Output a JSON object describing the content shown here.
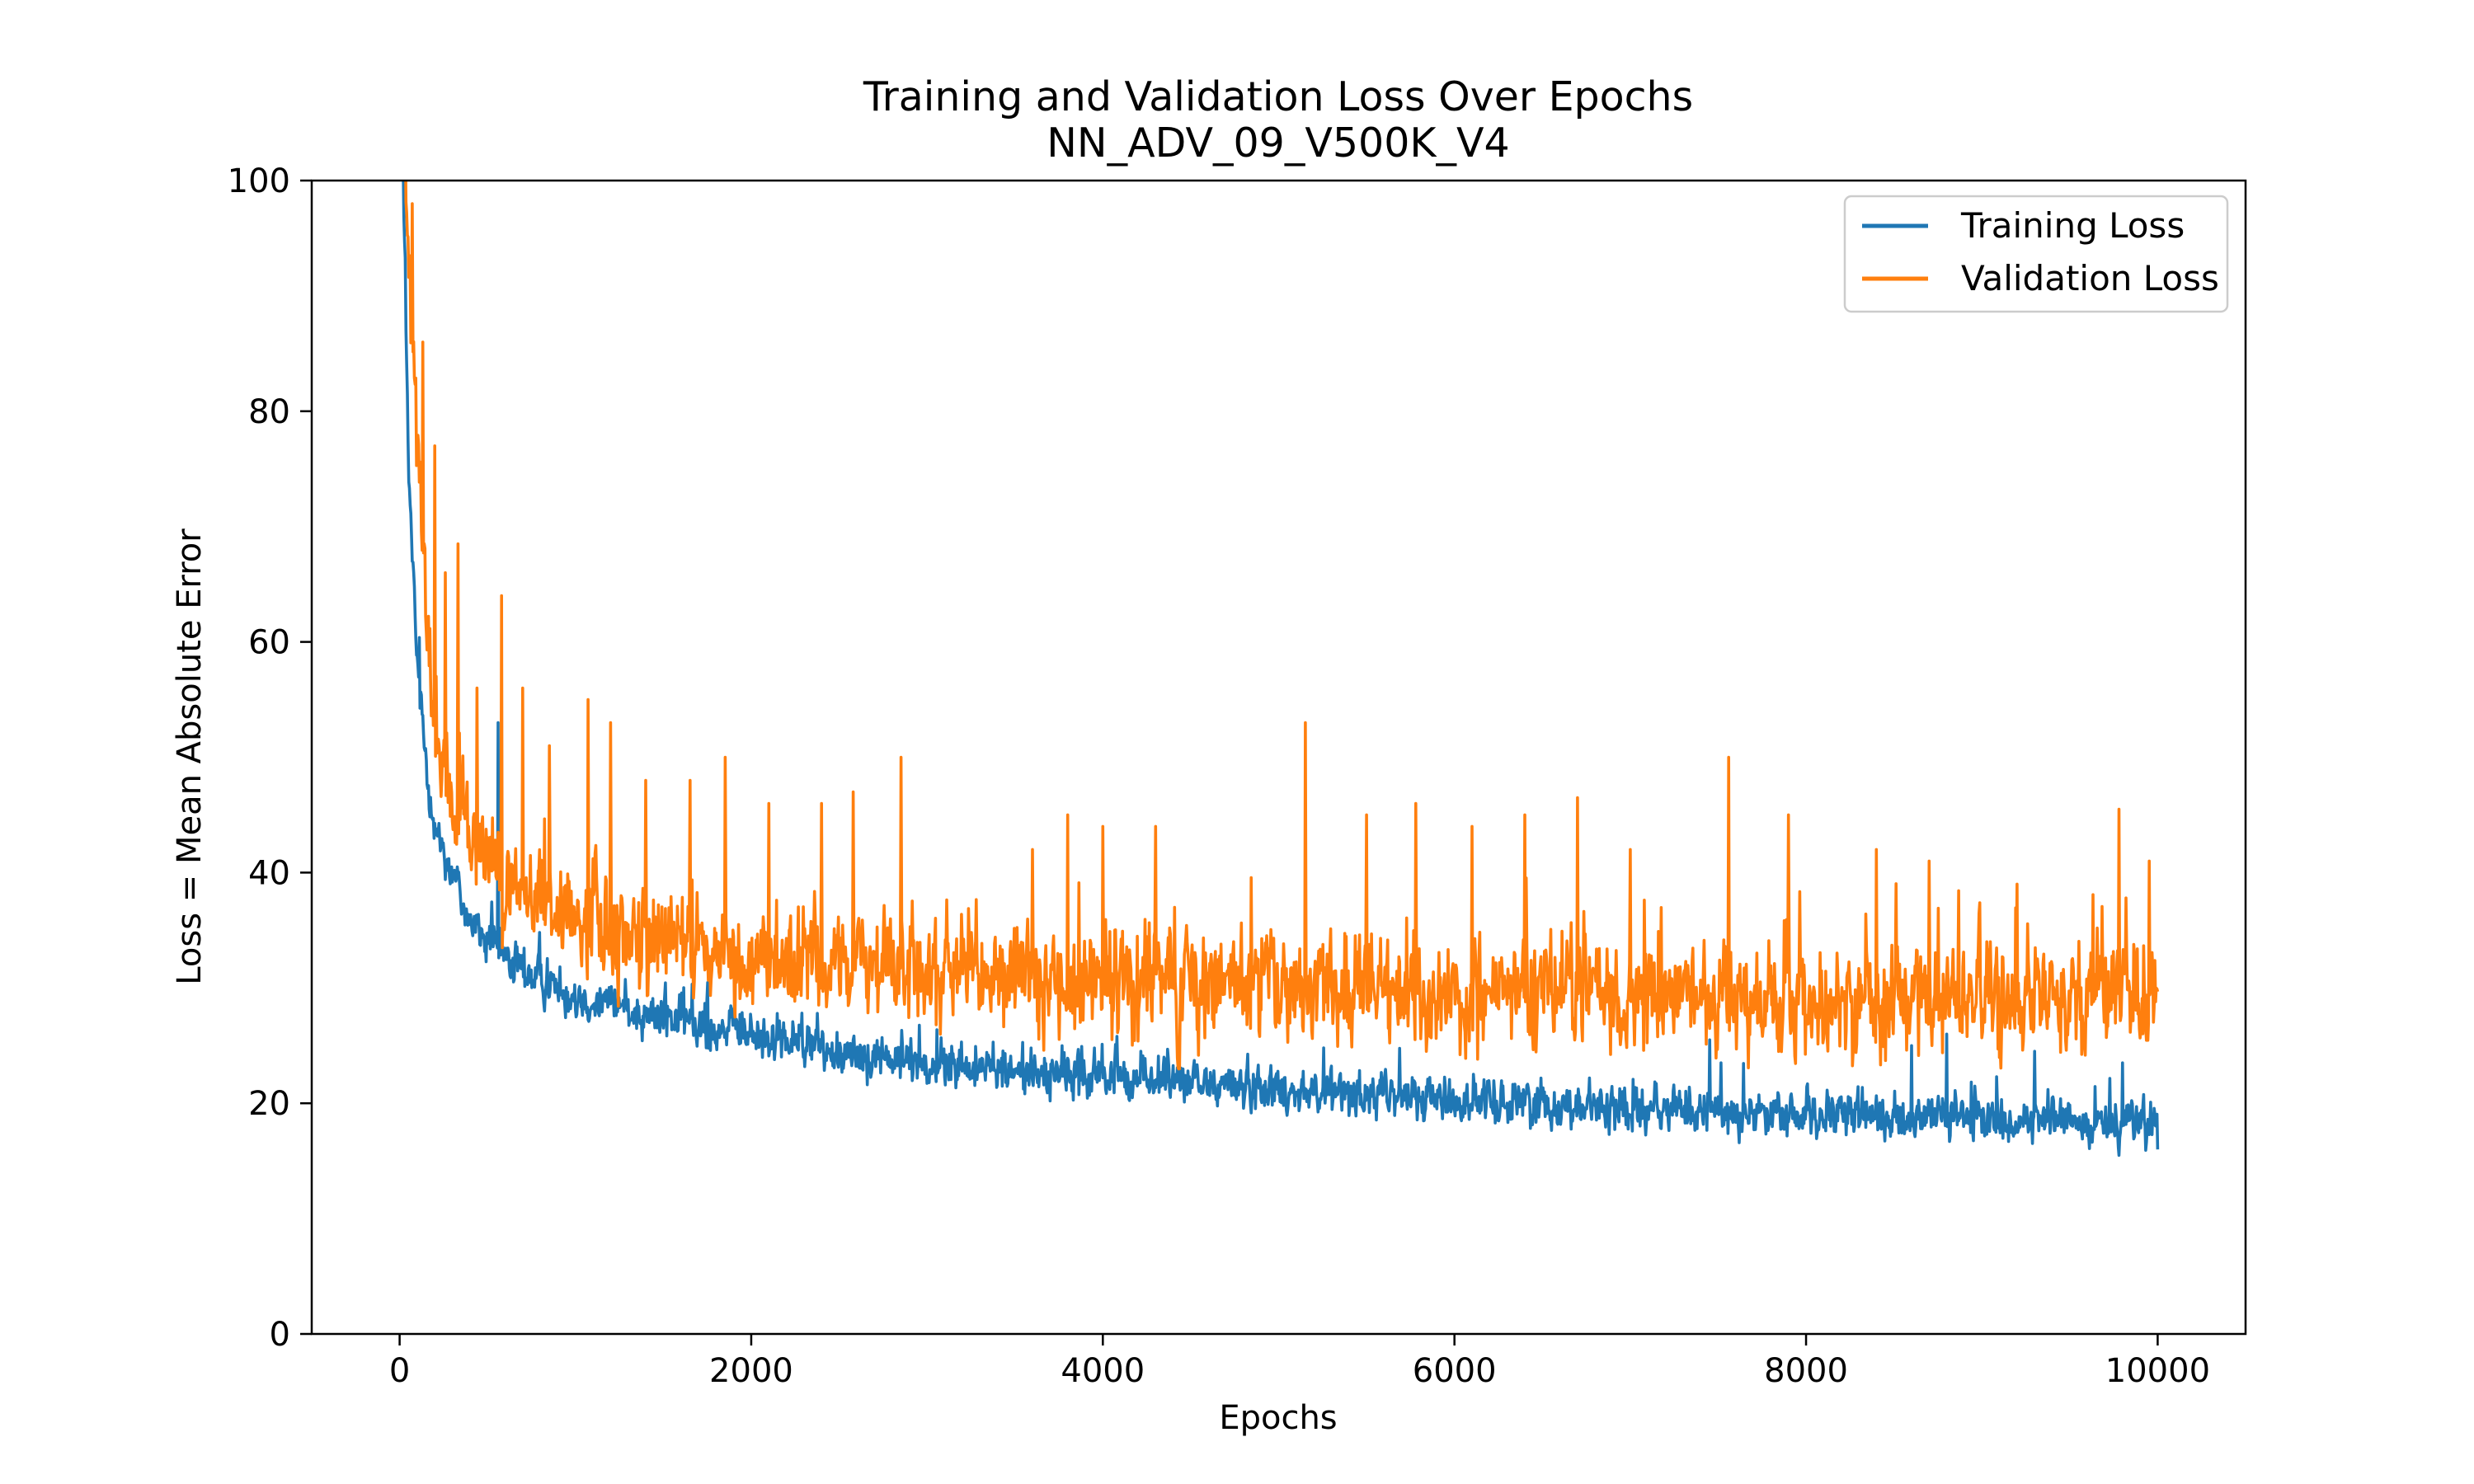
{
  "chart_data": {
    "type": "line",
    "title": "Training and Validation Loss Over Epochs",
    "subtitle": "NN_ADV_09_V500K_V4",
    "xlabel": "Epochs",
    "ylabel": "Loss = Mean Absolute Error",
    "xlim": [
      -500,
      10500
    ],
    "ylim": [
      0,
      100
    ],
    "xticks": [
      0,
      2000,
      4000,
      6000,
      8000,
      10000
    ],
    "yticks": [
      0,
      20,
      40,
      60,
      80,
      100
    ],
    "xtick_labels": [
      "0",
      "2000",
      "4000",
      "6000",
      "8000",
      "10000"
    ],
    "ytick_labels": [
      "0",
      "20",
      "40",
      "60",
      "80",
      "100"
    ],
    "legend_position": "top-right",
    "x_range": [
      0,
      10000
    ],
    "series": [
      {
        "name": "Training Loss",
        "color": "#1f77b4",
        "anchors": [
          [
            0,
            120
          ],
          [
            20,
            100
          ],
          [
            50,
            75
          ],
          [
            100,
            58
          ],
          [
            150,
            50
          ],
          [
            200,
            44
          ],
          [
            300,
            40
          ],
          [
            400,
            36
          ],
          [
            500,
            34
          ],
          [
            700,
            31.5
          ],
          [
            1000,
            29.5
          ],
          [
            1500,
            27.5
          ],
          [
            2000,
            26
          ],
          [
            2500,
            24.5
          ],
          [
            3000,
            23.5
          ],
          [
            3500,
            22.8
          ],
          [
            4000,
            22.3
          ],
          [
            4500,
            21.8
          ],
          [
            5000,
            21.3
          ],
          [
            5500,
            20.8
          ],
          [
            6000,
            20.3
          ],
          [
            6500,
            20
          ],
          [
            7000,
            19.6
          ],
          [
            7500,
            19.2
          ],
          [
            8000,
            18.9
          ],
          [
            8500,
            18.8
          ],
          [
            9000,
            18.6
          ],
          [
            9500,
            18.4
          ],
          [
            10000,
            18.3
          ]
        ],
        "noise": 1.4,
        "spikes": [
          [
            560,
            53
          ],
          [
            7450,
            25.5
          ],
          [
            8600,
            25
          ],
          [
            8800,
            26
          ],
          [
            9300,
            24.5
          ],
          [
            9800,
            23.5
          ],
          [
            10000,
            16
          ]
        ]
      },
      {
        "name": "Validation Loss",
        "color": "#ff7f0e",
        "anchors": [
          [
            0,
            120
          ],
          [
            40,
            100
          ],
          [
            80,
            85
          ],
          [
            150,
            62
          ],
          [
            200,
            52
          ],
          [
            300,
            46
          ],
          [
            400,
            42
          ],
          [
            600,
            39
          ],
          [
            800,
            37.5
          ],
          [
            1000,
            36
          ],
          [
            1500,
            34
          ],
          [
            2000,
            33
          ],
          [
            2500,
            32
          ],
          [
            3000,
            31.3
          ],
          [
            4000,
            30.5
          ],
          [
            5000,
            30
          ],
          [
            6000,
            29.6
          ],
          [
            7000,
            29.4
          ],
          [
            8000,
            29.2
          ],
          [
            9000,
            29
          ],
          [
            10000,
            29
          ]
        ],
        "noise": 3.2,
        "spikes": [
          [
            70,
            98
          ],
          [
            130,
            86
          ],
          [
            200,
            77
          ],
          [
            260,
            66
          ],
          [
            330,
            68.5
          ],
          [
            440,
            56
          ],
          [
            580,
            64
          ],
          [
            700,
            56
          ],
          [
            850,
            51
          ],
          [
            1070,
            55
          ],
          [
            1200,
            53
          ],
          [
            1400,
            48
          ],
          [
            1650,
            48
          ],
          [
            1850,
            50
          ],
          [
            2100,
            46
          ],
          [
            2400,
            46
          ],
          [
            2580,
            47
          ],
          [
            2850,
            50
          ],
          [
            3600,
            42
          ],
          [
            3800,
            45
          ],
          [
            4000,
            44
          ],
          [
            4300,
            44
          ],
          [
            5150,
            53
          ],
          [
            5500,
            45
          ],
          [
            5780,
            46
          ],
          [
            6100,
            44
          ],
          [
            6400,
            45
          ],
          [
            6700,
            46.5
          ],
          [
            7000,
            42
          ],
          [
            7560,
            50
          ],
          [
            7900,
            45
          ],
          [
            8400,
            42
          ],
          [
            8700,
            41
          ],
          [
            9200,
            39
          ],
          [
            9780,
            45.5
          ],
          [
            9950,
            41
          ]
        ]
      }
    ]
  }
}
